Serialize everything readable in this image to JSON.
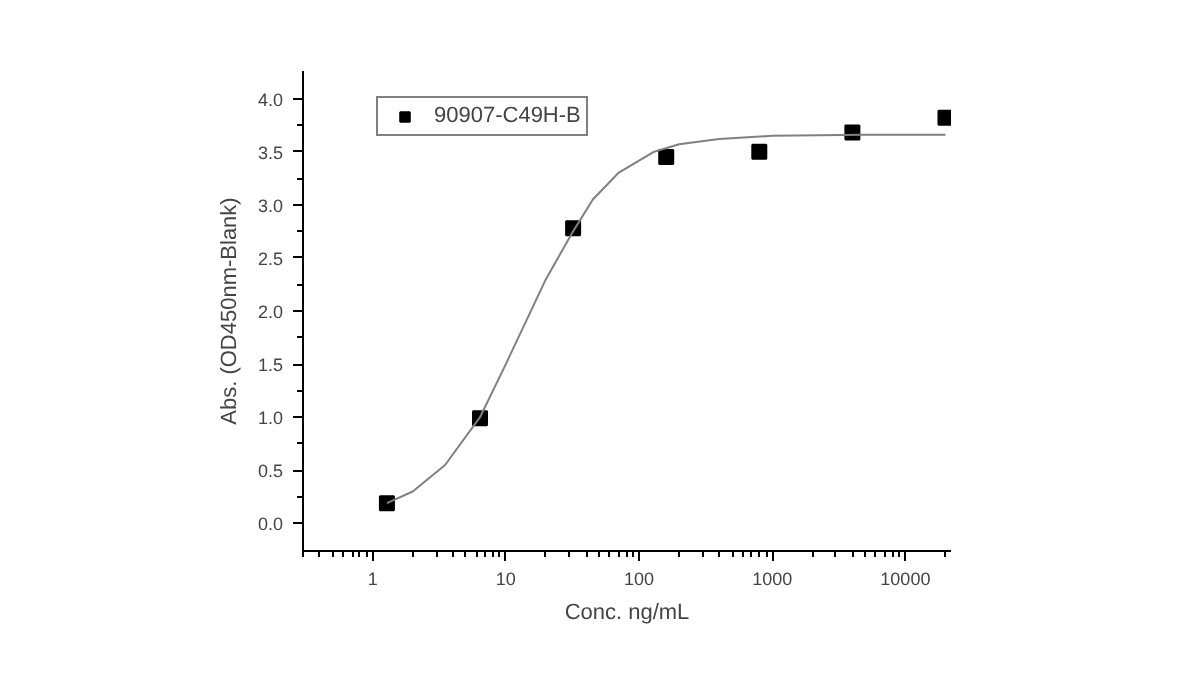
{
  "chart_data": {
    "type": "scatter",
    "xlabel": "Conc. ng/mL",
    "ylabel": "Abs. (OD450nm-Blank)",
    "log": "x",
    "xlim": [
      0.3,
      22000
    ],
    "ylim": [
      -0.26,
      4.26
    ],
    "xticks": [
      1,
      10,
      100,
      1000,
      10000
    ],
    "yticks": [
      {
        "value": 0,
        "label": "0.0"
      },
      0.5,
      {
        "value": 1,
        "label": "1.0"
      },
      1.5,
      {
        "value": 2,
        "label": "2.0"
      },
      2.5,
      {
        "value": 3,
        "label": "3.0"
      },
      3.5,
      {
        "value": 4,
        "label": "4.0"
      }
    ],
    "grid": false,
    "legend": "top left",
    "marker": "square",
    "series": [
      {
        "name": "90907-C49H-B",
        "color": "#000000",
        "x": [
          1.28,
          6.4,
          32,
          160,
          800,
          4000,
          20000
        ],
        "values": [
          0.19,
          0.99,
          2.78,
          3.45,
          3.5,
          3.68,
          3.82
        ]
      },
      {
        "color": "#808080",
        "type": "line",
        "marker": "none",
        "x": [
          1.28,
          2,
          3.5,
          6.4,
          10,
          20,
          32,
          45,
          70,
          130,
          200,
          400,
          1000,
          5000,
          20000
        ],
        "values": [
          0.19,
          0.3,
          0.55,
          1.0,
          1.5,
          2.3,
          2.75,
          3.05,
          3.3,
          3.5,
          3.57,
          3.62,
          3.65,
          3.66,
          3.66
        ]
      }
    ]
  }
}
